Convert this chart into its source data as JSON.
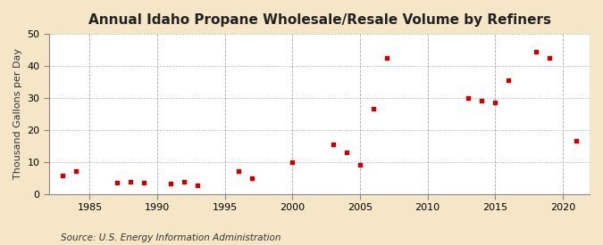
{
  "title": "Annual Idaho Propane Wholesale/Resale Volume by Refiners",
  "ylabel": "Thousand Gallons per Day",
  "source": "Source: U.S. Energy Information Administration",
  "fig_background_color": "#f5e6c8",
  "plot_background_color": "#ffffff",
  "marker_color": "#cc0000",
  "data_points": [
    [
      1983,
      5.8
    ],
    [
      1984,
      7.0
    ],
    [
      1987,
      3.5
    ],
    [
      1988,
      3.8
    ],
    [
      1989,
      3.5
    ],
    [
      1991,
      3.2
    ],
    [
      1992,
      3.8
    ],
    [
      1993,
      2.8
    ],
    [
      1996,
      7.0
    ],
    [
      1997,
      5.0
    ],
    [
      2000,
      10.0
    ],
    [
      2003,
      15.5
    ],
    [
      2004,
      13.0
    ],
    [
      2005,
      9.2
    ],
    [
      2006,
      26.5
    ],
    [
      2007,
      42.5
    ],
    [
      2013,
      30.0
    ],
    [
      2014,
      29.0
    ],
    [
      2015,
      28.5
    ],
    [
      2016,
      35.5
    ],
    [
      2018,
      44.5
    ],
    [
      2019,
      42.5
    ],
    [
      2021,
      16.5
    ]
  ],
  "xlim": [
    1982,
    2022
  ],
  "ylim": [
    0,
    50
  ],
  "xticks": [
    1985,
    1990,
    1995,
    2000,
    2005,
    2010,
    2015,
    2020
  ],
  "yticks": [
    0,
    10,
    20,
    30,
    40,
    50
  ],
  "title_fontsize": 11,
  "label_fontsize": 8,
  "tick_fontsize": 8,
  "source_fontsize": 7.5,
  "marker_size": 12
}
